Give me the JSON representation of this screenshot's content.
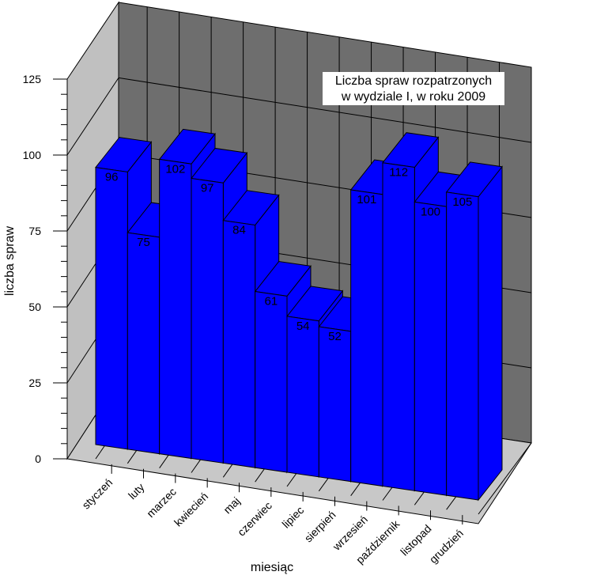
{
  "chart_data": {
    "type": "bar",
    "title": [
      "Liczba spraw rozpatrzonych",
      "w  wydziale I, w roku 2009"
    ],
    "xlabel": "miesiąc",
    "ylabel": "liczba spraw",
    "categories": [
      "styczeń",
      "luty",
      "marzec",
      "kwiecień",
      "maj",
      "czerwiec",
      "lipiec",
      "sierpień",
      "wrzesień",
      "październik",
      "listopad",
      "grudzień"
    ],
    "values": [
      96,
      75,
      102,
      97,
      84,
      61,
      54,
      52,
      101,
      112,
      100,
      105
    ],
    "ylim": [
      0,
      125
    ],
    "yticks": [
      0,
      25,
      50,
      75,
      100,
      125
    ],
    "grid": true,
    "style": "3d",
    "colors": {
      "bar_front": "#0000ff",
      "bar_top": "#0000ff",
      "bar_side": "#0000ff",
      "back_wall": "#6e6e6e",
      "side_wall": "#c0c0c0",
      "floor": "#c8c8c8",
      "grid_line": "#000000"
    }
  }
}
